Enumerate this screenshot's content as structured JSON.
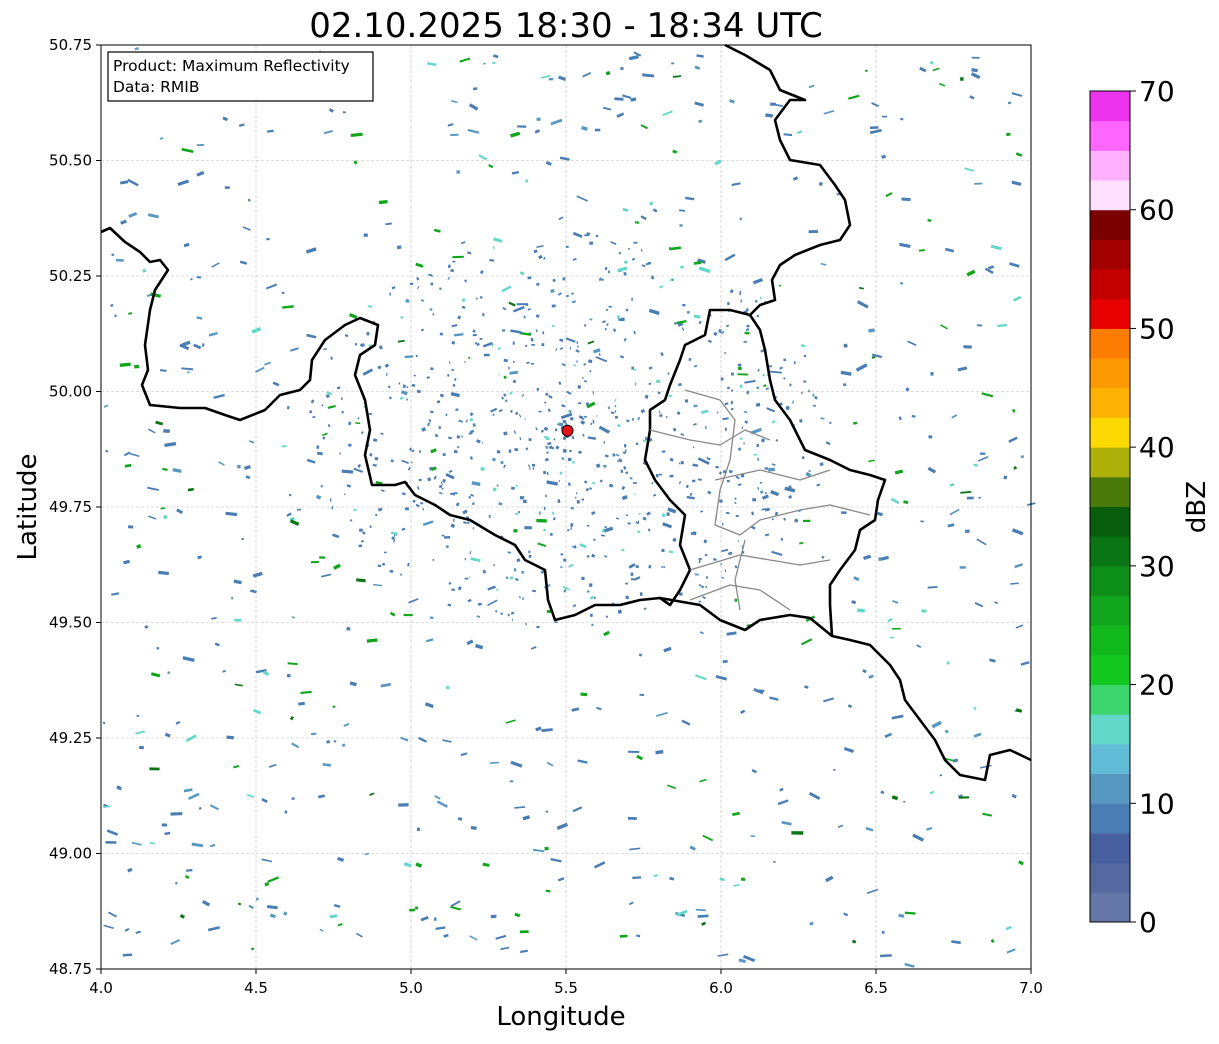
{
  "chart_data": {
    "type": "heatmap",
    "title": "02.10.2025 18:30 - 18:34 UTC",
    "xlabel": "Longitude",
    "ylabel": "Latitude",
    "xlim": [
      4.0,
      7.0
    ],
    "ylim": [
      48.75,
      50.75
    ],
    "xticks": [
      "4.0",
      "4.5",
      "5.0",
      "5.5",
      "6.0",
      "6.5",
      "7.0"
    ],
    "yticks": [
      "48.75",
      "49.00",
      "49.25",
      "49.50",
      "49.75",
      "50.00",
      "50.25",
      "50.50",
      "50.75"
    ],
    "grid": true,
    "annotation": {
      "line1": "Product: Maximum Reflectivity",
      "line2": "Data: RMIB",
      "placement": "top-left"
    },
    "radar_site": {
      "lon": 5.505,
      "lat": 49.915,
      "color": "#e8131a"
    },
    "colorbar": {
      "label": "dBZ",
      "range": [
        0,
        70
      ],
      "step": 2.5,
      "ticks": [
        "0",
        "10",
        "20",
        "30",
        "40",
        "50",
        "60",
        "70"
      ],
      "colors": [
        "#6577a6",
        "#5668a0",
        "#4860a0",
        "#4a7db3",
        "#5898c0",
        "#62bcd8",
        "#62d8c8",
        "#3dd66e",
        "#13c91f",
        "#10b81c",
        "#10a51a",
        "#0d8e19",
        "#0a7515",
        "#075c0d",
        "#4a7a0a",
        "#aeb10a",
        "#fcd903",
        "#fdb303",
        "#fd9903",
        "#fd7d03",
        "#e60000",
        "#c20000",
        "#a30000",
        "#7b0000",
        "#ffe0ff",
        "#ffb0ff",
        "#ff66ff",
        "#ee33ee"
      ]
    }
  }
}
